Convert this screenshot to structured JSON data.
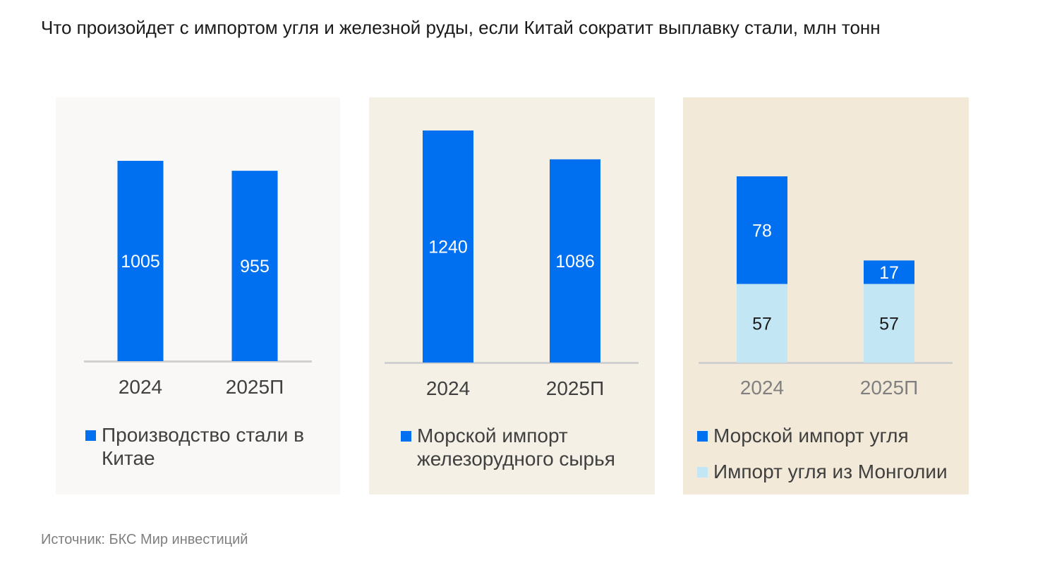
{
  "title": "Что произойдет с импортом угля и железной руды, если Китай сократит выплавку стали, млн тонн",
  "source": "Источник: БКС Мир инвестиций",
  "colors": {
    "primary": "#0070f0",
    "secondary": "#c3e6f5",
    "panel1_bg": "#f9f8f6",
    "panel2_bg": "#f5f0e6",
    "panel3_bg": "#f2e9d9"
  },
  "chart_data": [
    {
      "type": "bar",
      "categories": [
        "2024",
        "2025П"
      ],
      "series": [
        {
          "name": "Производство стали в Китае",
          "values": [
            1005,
            955
          ]
        }
      ],
      "legend": "bottom"
    },
    {
      "type": "bar",
      "categories": [
        "2024",
        "2025П"
      ],
      "series": [
        {
          "name": "Морской импорт железорудного сырья",
          "values": [
            1240,
            1086
          ]
        }
      ],
      "legend": "bottom"
    },
    {
      "type": "bar",
      "stacked": true,
      "categories": [
        "2024",
        "2025П"
      ],
      "series": [
        {
          "name": "Импорт угля из Монголии",
          "values": [
            57,
            57
          ]
        },
        {
          "name": "Морской импорт угля",
          "values": [
            78,
            17
          ]
        }
      ],
      "legend": "bottom"
    }
  ]
}
